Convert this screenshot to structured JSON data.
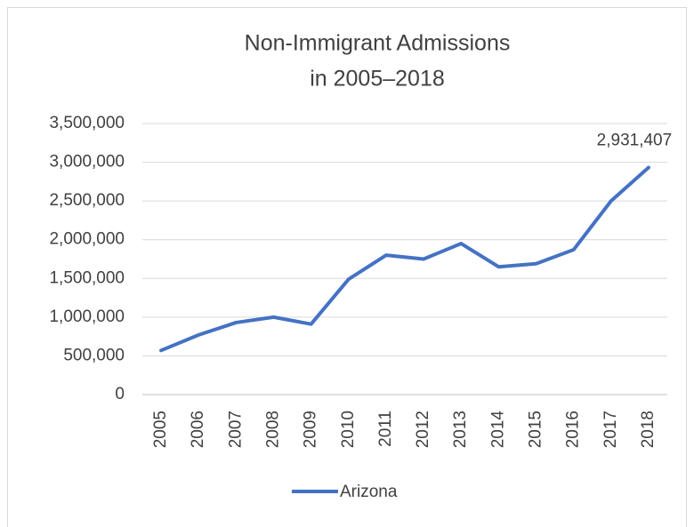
{
  "chart_data": {
    "type": "line",
    "title": [
      "Non-Immigrant Admissions",
      "in 2005–2018"
    ],
    "categories": [
      "2005",
      "2006",
      "2007",
      "2008",
      "2009",
      "2010",
      "2011",
      "2012",
      "2013",
      "2014",
      "2015",
      "2016",
      "2017",
      "2018"
    ],
    "series": [
      {
        "name": "Arizona",
        "color": "#4472c4",
        "values": [
          570000,
          770000,
          930000,
          1000000,
          910000,
          1490000,
          1800000,
          1750000,
          1950000,
          1650000,
          1690000,
          1870000,
          2500000,
          2931407
        ],
        "value_labels": [
          null,
          null,
          null,
          null,
          null,
          null,
          null,
          null,
          null,
          null,
          null,
          null,
          null,
          "2,931,407"
        ]
      }
    ],
    "ylim": [
      0,
      3500000
    ],
    "yticks": [
      0,
      {
        "value": 500000,
        "label": "500,000"
      },
      {
        "value": 1000000,
        "label": "1,000,000"
      },
      {
        "value": 1500000,
        "label": "1,500,000"
      },
      {
        "value": 2000000,
        "label": "2,000,000"
      },
      {
        "value": 2500000,
        "label": "2,500,000"
      },
      {
        "value": 3000000,
        "label": "3,000,000"
      },
      {
        "value": 3500000,
        "label": "3,500,000"
      }
    ],
    "grid": true,
    "legend": "bottom"
  }
}
